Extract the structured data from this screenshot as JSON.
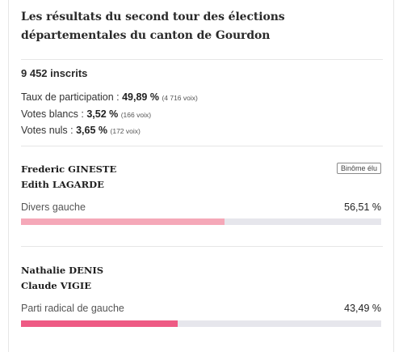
{
  "title": "Les résultats du second tour des élections départementales du canton de Gourdon",
  "inscrits": "9 452 inscrits",
  "stats": {
    "participation": {
      "label": "Taux de participation : ",
      "value": "49,89 %",
      "count": "(4 716 voix)"
    },
    "blancs": {
      "label": "Votes blancs : ",
      "value": "3,52 %",
      "count": "(166 voix)"
    },
    "nuls": {
      "label": "Votes nuls : ",
      "value": "3,65 %",
      "count": "(172 voix)"
    }
  },
  "candidates": [
    {
      "name1": "Frederic GINESTE",
      "name2": "Edith LAGARDE",
      "badge": "Binôme élu",
      "party": "Divers gauche",
      "percent": "56,51 %",
      "share": 0.5651,
      "color": "#f5a8b8"
    },
    {
      "name1": "Nathalie DENIS",
      "name2": "Claude VIGIE",
      "party": "Parti radical de gauche",
      "percent": "43,49 %",
      "share": 0.4349,
      "color": "#ee5a84"
    }
  ],
  "colors": {
    "bar_track": "#e6e6ec",
    "separator": "#e6e6e6"
  }
}
